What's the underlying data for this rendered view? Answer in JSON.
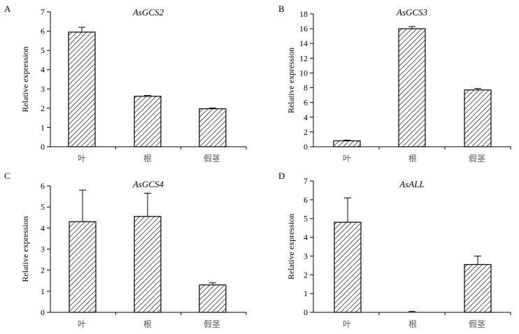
{
  "chart_data": [
    {
      "panel": "A",
      "type": "bar",
      "title": "AsGCS2",
      "ylabel": "Relative expression",
      "categories": [
        "叶",
        "根",
        "假茎"
      ],
      "values": [
        5.95,
        2.62,
        1.97
      ],
      "errors": [
        0.25,
        0.04,
        0.04
      ],
      "ylim": [
        0,
        7
      ],
      "yticks": [
        0,
        1,
        2,
        3,
        4,
        5,
        6,
        7
      ]
    },
    {
      "panel": "B",
      "type": "bar",
      "title": "AsGCS3",
      "ylabel": "Relative expression",
      "categories": [
        "叶",
        "根",
        "假茎"
      ],
      "values": [
        0.8,
        16.0,
        7.7
      ],
      "errors": [
        0.1,
        0.3,
        0.2
      ],
      "ylim": [
        0,
        18
      ],
      "yticks": [
        0,
        2,
        4,
        6,
        8,
        10,
        12,
        14,
        16,
        18
      ]
    },
    {
      "panel": "C",
      "type": "bar",
      "title": "AsGCS4",
      "ylabel": "Relative expression",
      "categories": [
        "叶",
        "根",
        "假茎"
      ],
      "values": [
        4.3,
        4.55,
        1.3
      ],
      "errors": [
        1.5,
        1.1,
        0.1
      ],
      "ylim": [
        0,
        6
      ],
      "yticks": [
        0,
        1,
        2,
        3,
        4,
        5,
        6
      ]
    },
    {
      "panel": "D",
      "type": "bar",
      "title": "AsALL",
      "ylabel": "Relative expression",
      "categories": [
        "叶",
        "根",
        "假茎"
      ],
      "values": [
        4.8,
        0.0,
        2.55
      ],
      "errors": [
        1.3,
        0.05,
        0.45
      ],
      "ylim": [
        0,
        7
      ],
      "yticks": [
        0,
        1,
        2,
        3,
        4,
        5,
        6,
        7
      ]
    }
  ]
}
